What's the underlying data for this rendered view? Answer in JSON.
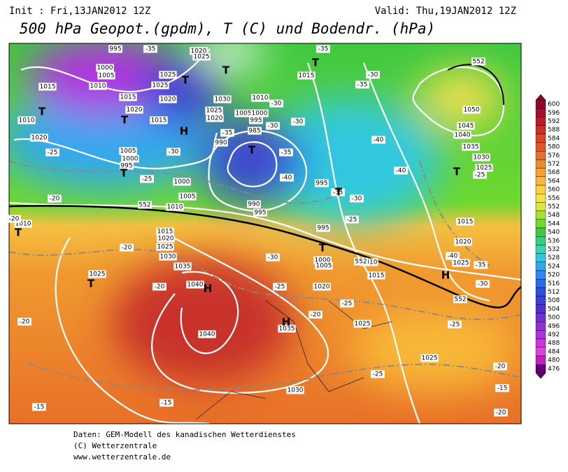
{
  "header": {
    "init": "Init : Fri,13JAN2012 12Z",
    "valid": "Valid: Thu,19JAN2012 12Z",
    "title": "500 hPa Geopot.(gpdm), T (C) und Bodendr. (hPa)"
  },
  "map": {
    "labels": [
      "995",
      "1000",
      "1005",
      "1010",
      "1015",
      "1015",
      "1020",
      "1015",
      "1020",
      "1025",
      "1025",
      "1020",
      "1025",
      "1030",
      "1025",
      "1020",
      "1010",
      "1005",
      "1000",
      "995",
      "985",
      "990",
      "990",
      "995",
      "1015",
      "995",
      "995",
      "1000",
      "1005",
      "1010",
      "1015",
      "1020",
      "1025",
      "1025",
      "1035",
      "1040",
      "1040",
      "1035",
      "1030",
      "1025",
      "1020",
      "1015",
      "1010",
      "1005",
      "1000",
      "1010",
      "1020",
      "1010",
      "1005",
      "1000",
      "995",
      "1030",
      "1025",
      "1050",
      "1045",
      "1040",
      "1035",
      "1030",
      "1025",
      "1015",
      "1020",
      "1025",
      "-35",
      "-35",
      "-35",
      "-30",
      "-30",
      "-30",
      "-35",
      "-40",
      "-40",
      "-40",
      "-35",
      "-30",
      "-25",
      "-30",
      "-35",
      "-30",
      "-25",
      "-25",
      "-20",
      "-20",
      "-20",
      "-20",
      "-20",
      "-15",
      "-15",
      "-20",
      "-25",
      "-25",
      "-30",
      "-25",
      "-25",
      "-30",
      "-35",
      "-40",
      "-25",
      "-20",
      "-15",
      "-20",
      "552",
      "552",
      "552",
      "552",
      "H",
      "H",
      "H",
      "H",
      "T",
      "T",
      "T",
      "T",
      "T",
      "T",
      "T",
      "T",
      "T",
      "T",
      "T",
      "T"
    ]
  },
  "colorbar": {
    "ticks": [
      "600",
      "596",
      "592",
      "588",
      "584",
      "580",
      "576",
      "572",
      "568",
      "564",
      "560",
      "556",
      "552",
      "548",
      "544",
      "540",
      "536",
      "532",
      "528",
      "524",
      "520",
      "516",
      "512",
      "508",
      "504",
      "500",
      "496",
      "492",
      "488",
      "484",
      "480",
      "476"
    ],
    "colors": [
      "#8b0a2a",
      "#a01030",
      "#b81c2c",
      "#c8302a",
      "#d8452a",
      "#e05a28",
      "#e87028",
      "#f08a28",
      "#f5a030",
      "#f8b838",
      "#fad040",
      "#f5e050",
      "#d8e840",
      "#a8e030",
      "#70d830",
      "#40c840",
      "#30d080",
      "#30d8b8",
      "#30c8e0",
      "#30a8f0",
      "#3088f0",
      "#3068e8",
      "#3050d8",
      "#4040d0",
      "#5030c8",
      "#7030d0",
      "#9030d8",
      "#b030e0",
      "#d030e0",
      "#e040e0",
      "#c020c0",
      "#600070"
    ]
  },
  "footer": {
    "line1": "Daten: GEM-Modell des kanadischen Wetterdienstes",
    "line2": "(C) Wetterzentrale",
    "line3": "www.wetterzentrale.de"
  }
}
